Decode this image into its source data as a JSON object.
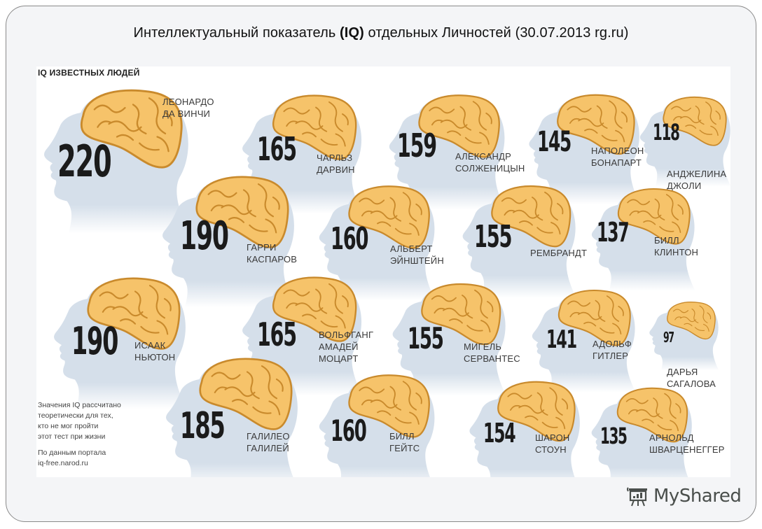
{
  "slide": {
    "title_before": "Интеллектуальный показатель ",
    "title_bold": "(IQ)",
    "title_after": " отдельных Личностей (30.07.2013 rg.ru)"
  },
  "infographic": {
    "heading": "IQ ИЗВЕСТНЫХ ЛЮДЕЙ",
    "note": "Значения IQ рассчитано\nтеоретически для тех,\nкто не мог пройти\nэтот тест при жизни",
    "source": "По данным портала\niq-free.narod.ru",
    "colors": {
      "head": "#d5dfea",
      "brain": "#f6c36a",
      "brain_outline": "#c98a2c",
      "number": "#1b1b1b"
    },
    "people": [
      {
        "name": "Леонардо\nда Винчи",
        "iq": "220"
      },
      {
        "name": "Чарльз\nДарвин",
        "iq": "165"
      },
      {
        "name": "Александр\nСолженицын",
        "iq": "159"
      },
      {
        "name": "Наполеон\nБонапарт",
        "iq": "145"
      },
      {
        "name": "Анджелина\nДжоли",
        "iq": "118"
      },
      {
        "name": "Гарри\nКаспаров",
        "iq": "190"
      },
      {
        "name": "Альберт\nЭйнштейн",
        "iq": "160"
      },
      {
        "name": "Рембрандт",
        "iq": "155"
      },
      {
        "name": "Билл\nКлинтон",
        "iq": "137"
      },
      {
        "name": "Исаак\nНьютон",
        "iq": "190"
      },
      {
        "name": "Вольфганг\nАмадей\nМоцарт",
        "iq": "165"
      },
      {
        "name": "Мигель\nСервантес",
        "iq": "155"
      },
      {
        "name": "Адольф\nГитлер",
        "iq": "141"
      },
      {
        "name": "Дарья\nСагалова",
        "iq": "97"
      },
      {
        "name": "Галилео\nГалилей",
        "iq": "185"
      },
      {
        "name": "Билл\nГейтс",
        "iq": "160"
      },
      {
        "name": "Шарон\nСтоун",
        "iq": "154"
      },
      {
        "name": "Арнольд\nШварценеггер",
        "iq": "135"
      }
    ]
  },
  "watermark": {
    "label": "MyShared",
    "icon": "presentation-board-icon"
  }
}
